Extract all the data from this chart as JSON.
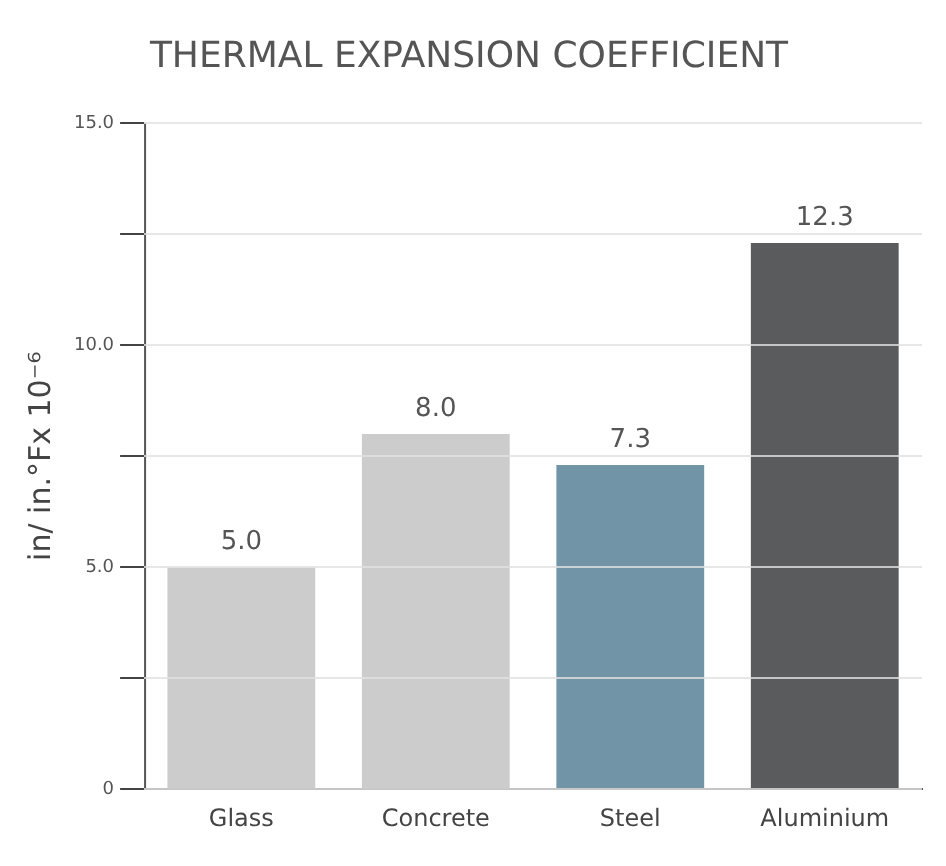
{
  "chart_data": {
    "type": "bar",
    "title": "THERMAL EXPANSION COEFFICIENT",
    "ylabel": "in/ in.°Fx 10⁻⁶",
    "categories": [
      "Glass",
      "Concrete",
      "Steel",
      "Aluminium"
    ],
    "values": [
      5.0,
      8.0,
      7.3,
      12.3
    ],
    "colors": [
      "#cccccc",
      "#cccccc",
      "#7294a7",
      "#5a5b5d"
    ],
    "ylim": [
      0,
      15
    ],
    "yticks": [
      0,
      {
        "value": 2.5,
        "label": null
      },
      {
        "value": 5,
        "label": "5.0"
      },
      {
        "value": 7.5,
        "label": null
      },
      {
        "value": 10,
        "label": "10.0"
      },
      {
        "value": 12.5,
        "label": null
      },
      {
        "value": 15,
        "label": "15.0"
      }
    ],
    "value_labels": [
      "5.0",
      "8.0",
      "7.3",
      "12.3"
    ],
    "grid": "y",
    "legend": false
  }
}
